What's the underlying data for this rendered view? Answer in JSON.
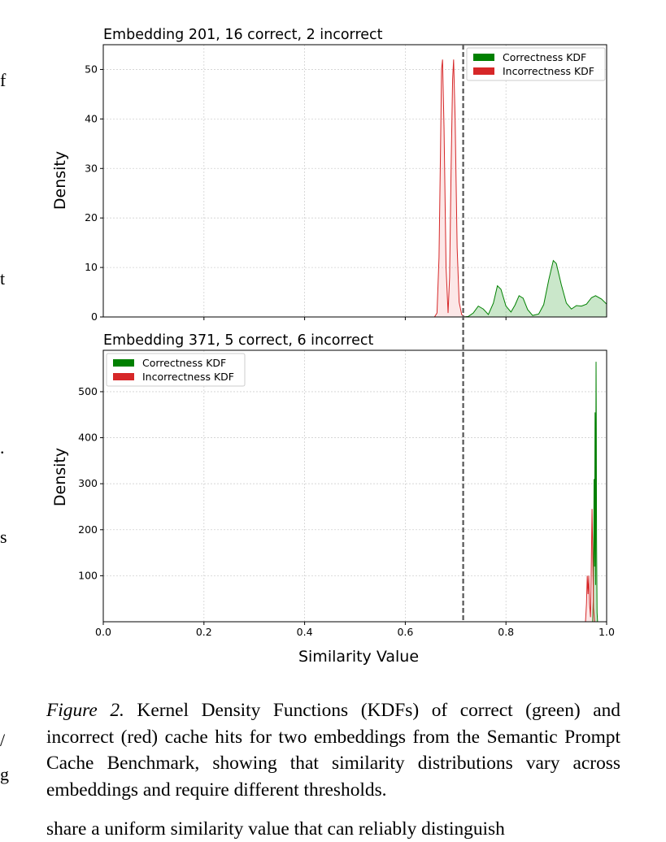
{
  "chart_data": [
    {
      "type": "area",
      "title": "Embedding 201, 16 correct, 2 incorrect",
      "ylabel": "Density",
      "xlabel": "",
      "xlim": [
        0.0,
        1.0
      ],
      "ylim": [
        0,
        55
      ],
      "yticks": [
        "0",
        "10",
        "20",
        "30",
        "40",
        "50"
      ],
      "grid": true,
      "legend_position": "top-right",
      "threshold_line": 0.715,
      "series": [
        {
          "name": "Correctness KDF",
          "color": "#008000",
          "fill": "#2ca02c",
          "points": [
            [
              0.715,
              0
            ],
            [
              0.725,
              0.1
            ],
            [
              0.735,
              0.8
            ],
            [
              0.745,
              2.2
            ],
            [
              0.755,
              1.6
            ],
            [
              0.765,
              0.5
            ],
            [
              0.775,
              2.8
            ],
            [
              0.783,
              6.3
            ],
            [
              0.79,
              5.6
            ],
            [
              0.8,
              2.2
            ],
            [
              0.81,
              1.0
            ],
            [
              0.818,
              2.4
            ],
            [
              0.826,
              4.3
            ],
            [
              0.834,
              3.8
            ],
            [
              0.843,
              1.5
            ],
            [
              0.853,
              0.3
            ],
            [
              0.865,
              0.6
            ],
            [
              0.875,
              2.5
            ],
            [
              0.885,
              7.5
            ],
            [
              0.894,
              11.4
            ],
            [
              0.9,
              10.8
            ],
            [
              0.91,
              6.5
            ],
            [
              0.92,
              2.8
            ],
            [
              0.93,
              1.6
            ],
            [
              0.94,
              2.3
            ],
            [
              0.95,
              2.2
            ],
            [
              0.96,
              2.6
            ],
            [
              0.97,
              3.9
            ],
            [
              0.978,
              4.3
            ],
            [
              0.99,
              3.6
            ],
            [
              1.0,
              2.6
            ]
          ]
        },
        {
          "name": "Incorrectness KDF",
          "color": "#d62728",
          "fill": "#f4a0a0",
          "points": [
            [
              0.658,
              0
            ],
            [
              0.663,
              0.8
            ],
            [
              0.667,
              12
            ],
            [
              0.67,
              34
            ],
            [
              0.672,
              50
            ],
            [
              0.674,
              52
            ],
            [
              0.677,
              38
            ],
            [
              0.681,
              10
            ],
            [
              0.685,
              0.8
            ],
            [
              0.688,
              8
            ],
            [
              0.691,
              30
            ],
            [
              0.694,
              48
            ],
            [
              0.696,
              52
            ],
            [
              0.699,
              40
            ],
            [
              0.703,
              14
            ],
            [
              0.707,
              3
            ],
            [
              0.712,
              0.5
            ],
            [
              0.718,
              0
            ]
          ]
        }
      ]
    },
    {
      "type": "area",
      "title": "Embedding 371, 5 correct, 6 incorrect",
      "ylabel": "Density",
      "xlabel": "Similarity Value",
      "xlim": [
        0.0,
        1.0
      ],
      "ylim": [
        0,
        590
      ],
      "xticks": [
        "0.0",
        "0.2",
        "0.4",
        "0.6",
        "0.8",
        "1.0"
      ],
      "yticks": [
        "100",
        "200",
        "300",
        "400",
        "500"
      ],
      "grid": true,
      "legend_position": "top-left",
      "threshold_line": 0.715,
      "series": [
        {
          "name": "Correctness KDF",
          "color": "#008000",
          "fill": "#2ca02c",
          "points": [
            [
              0.972,
              0
            ],
            [
              0.9735,
              50
            ],
            [
              0.9745,
              200
            ],
            [
              0.975,
              310
            ],
            [
              0.9755,
              230
            ],
            [
              0.976,
              120
            ],
            [
              0.9765,
              300
            ],
            [
              0.977,
              455
            ],
            [
              0.9775,
              300
            ],
            [
              0.978,
              80
            ],
            [
              0.9785,
              350
            ],
            [
              0.979,
              565
            ],
            [
              0.9795,
              420
            ],
            [
              0.98,
              180
            ],
            [
              0.981,
              20
            ],
            [
              0.982,
              0
            ]
          ]
        },
        {
          "name": "Incorrectness KDF",
          "color": "#d62728",
          "fill": "#f4a0a0",
          "points": [
            [
              0.958,
              0
            ],
            [
              0.96,
              40
            ],
            [
              0.9615,
              100
            ],
            [
              0.963,
              60
            ],
            [
              0.9645,
              100
            ],
            [
              0.966,
              40
            ],
            [
              0.968,
              10
            ],
            [
              0.9695,
              120
            ],
            [
              0.971,
              245
            ],
            [
              0.9725,
              140
            ],
            [
              0.974,
              30
            ],
            [
              0.976,
              0
            ]
          ]
        }
      ]
    }
  ],
  "caption": {
    "label": "Figure 2.",
    "text": "Kernel Density Functions (KDFs) of correct (green) and incorrect (red) cache hits for two embeddings from the Semantic Prompt Cache Benchmark, showing that similarity distributions vary across embeddings and require different thresholds."
  },
  "body_text_fragment": "share a uniform similarity value that can reliably distinguish",
  "margin_marks": [
    "f",
    "t",
    ".",
    "s",
    "/",
    "g"
  ]
}
